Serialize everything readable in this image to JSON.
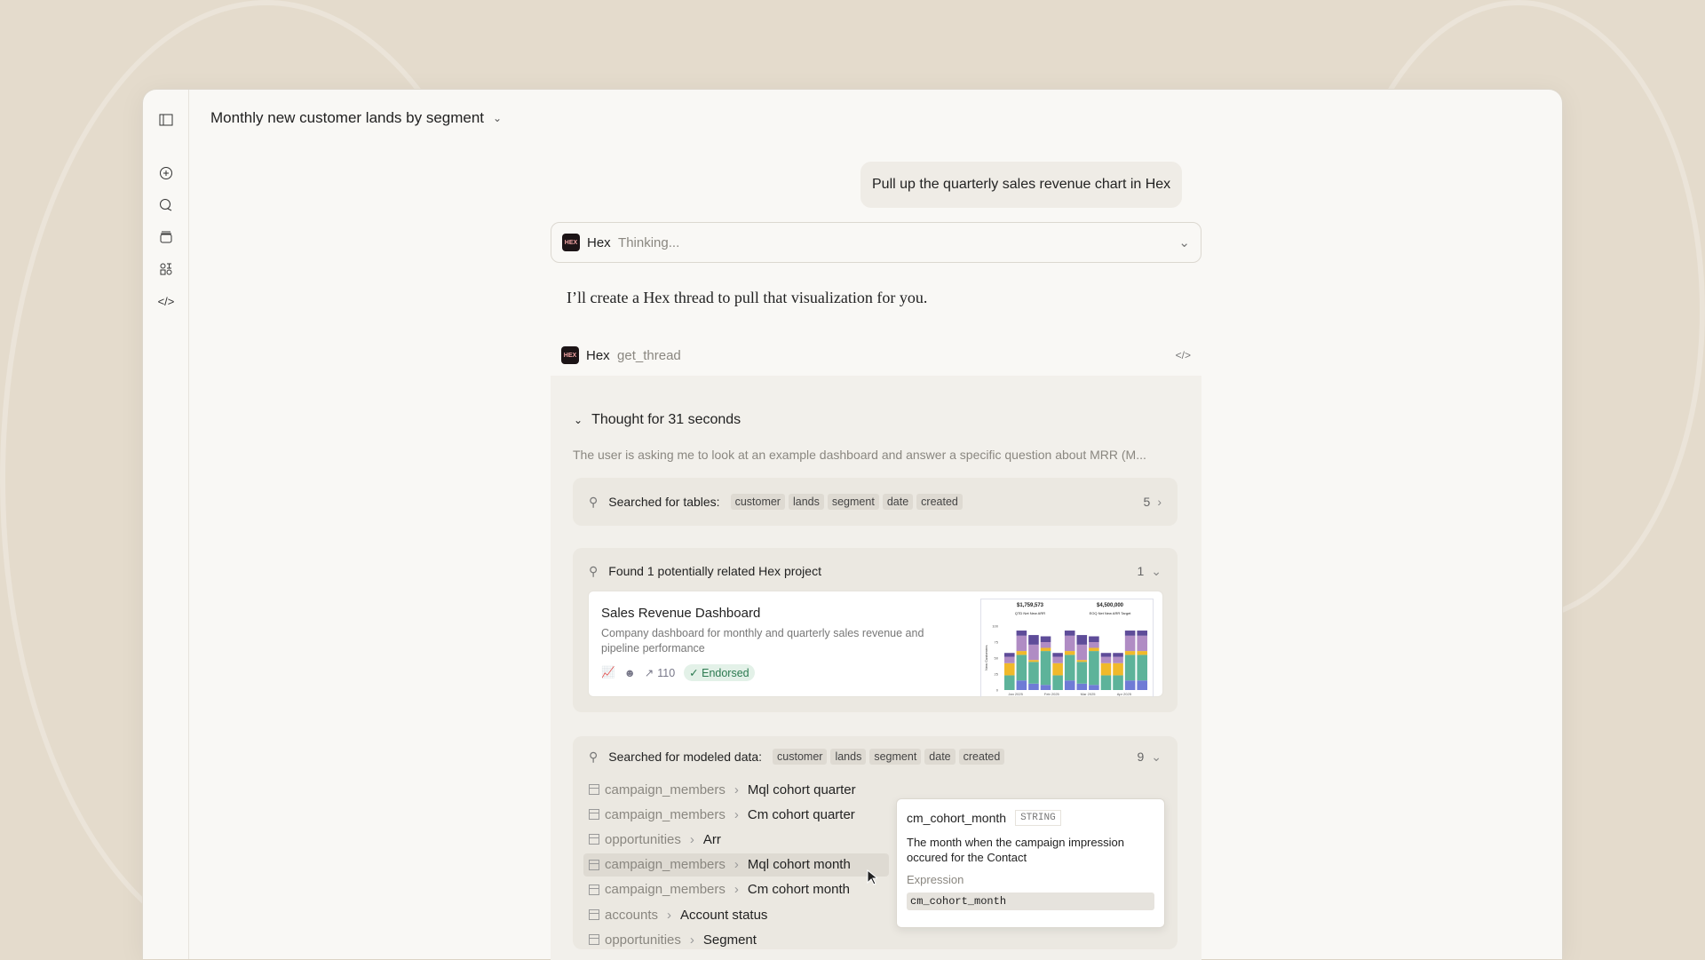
{
  "header": {
    "title": "Monthly new customer lands by segment"
  },
  "sidebar": {
    "icons": [
      "sidebar-toggle-icon",
      "new-chat-icon",
      "chats-icon",
      "projects-icon",
      "integrations-icon",
      "code-icon"
    ]
  },
  "user_message": "Pull up the quarterly sales revenue chart in Hex",
  "thinking": {
    "app": "Hex",
    "status": "Thinking..."
  },
  "response": "I’ll create a Hex thread to pull that visualization for you.",
  "tool_call": {
    "app": "Hex",
    "name": "get_thread"
  },
  "thought": {
    "label": "Thought for 31 seconds",
    "summary": "The user is asking me to look at an example dashboard and answer a specific question about MRR (M..."
  },
  "search_tables": {
    "label": "Searched for tables:",
    "chips": [
      "customer",
      "lands",
      "segment",
      "date",
      "created"
    ],
    "count": "5"
  },
  "found": {
    "label": "Found 1 potentially related Hex project",
    "count": "1",
    "project": {
      "title": "Sales Revenue Dashboard",
      "description": "Company dashboard for monthly and quarterly sales revenue and pipeline performance",
      "views": "110",
      "badge": "Endorsed",
      "thumb": {
        "kpi1_value": "$1,759,573",
        "kpi1_label": "QTD Net New ARR",
        "kpi2_value": "$4,500,000",
        "kpi2_label": "EOQ Net New ARR Target",
        "ylabel": "New Customers",
        "yticks": [
          "0",
          "25",
          "50",
          "75",
          "100"
        ],
        "xticks": [
          "Jan 2025",
          "Feb 2025",
          "Mar 2025",
          "Apr 2025"
        ]
      }
    }
  },
  "modeled": {
    "label": "Searched for modeled data:",
    "chips": [
      "customer",
      "lands",
      "segment",
      "date",
      "created"
    ],
    "count": "9",
    "rows": [
      {
        "table": "campaign_members",
        "field": "Mql cohort quarter"
      },
      {
        "table": "campaign_members",
        "field": "Cm cohort quarter"
      },
      {
        "table": "opportunities",
        "field": "Arr"
      },
      {
        "table": "campaign_members",
        "field": "Mql cohort month"
      },
      {
        "table": "campaign_members",
        "field": "Cm cohort month"
      },
      {
        "table": "accounts",
        "field": "Account status"
      },
      {
        "table": "opportunities",
        "field": "Segment"
      }
    ]
  },
  "tooltip": {
    "name": "cm_cohort_month",
    "type": "STRING",
    "description": "The month when the campaign impression occured for the Contact",
    "expression_label": "Expression",
    "expression": "cm_cohort_month"
  },
  "chart_data": {
    "type": "bar",
    "stacked": true,
    "ylim": [
      0,
      100
    ],
    "ylabel": "New Customers",
    "categories": [
      "1",
      "2",
      "3",
      "4",
      "5",
      "6",
      "7",
      "8",
      "9",
      "10",
      "11",
      "12",
      "13",
      "14"
    ],
    "colors": [
      "#6f7bd6",
      "#5db39a",
      "#f0b92a",
      "#b08cc4",
      "#5e4c99"
    ],
    "series": [
      {
        "values": [
          0,
          15,
          10,
          8,
          0,
          15,
          10,
          8,
          0,
          0,
          15,
          15,
          0,
          0
        ]
      },
      {
        "values": [
          23,
          40,
          34,
          53,
          23,
          40,
          34,
          53,
          23,
          23,
          40,
          40,
          0,
          0
        ]
      },
      {
        "values": [
          19,
          6,
          3,
          5,
          19,
          6,
          3,
          5,
          19,
          19,
          6,
          6,
          0,
          0
        ]
      },
      {
        "values": [
          10,
          24,
          24,
          9,
          10,
          24,
          24,
          9,
          10,
          10,
          24,
          24,
          0,
          0
        ]
      },
      {
        "values": [
          6,
          8,
          15,
          9,
          6,
          8,
          15,
          9,
          6,
          6,
          8,
          8,
          0,
          0
        ]
      }
    ]
  }
}
